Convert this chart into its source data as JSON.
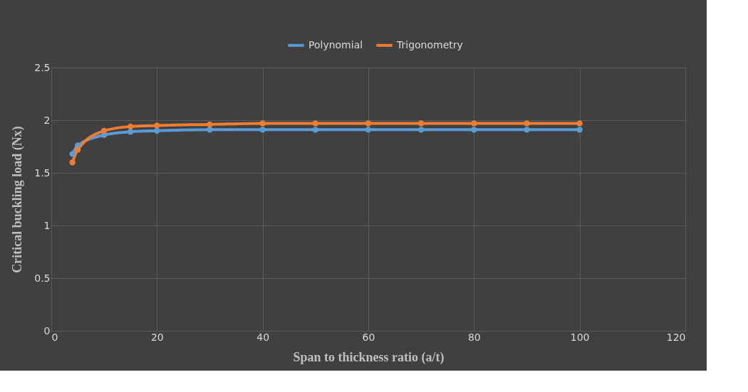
{
  "chart_data": {
    "type": "line",
    "xlabel": "Span to thickness ratio (a/t)",
    "ylabel": "Critical buckling load (Nx)",
    "x": [
      4,
      5,
      10,
      15,
      20,
      30,
      40,
      50,
      60,
      70,
      80,
      90,
      100
    ],
    "series": [
      {
        "name": "Polynomial",
        "color": "#5b9bd5",
        "values": [
          1.68,
          1.76,
          1.86,
          1.89,
          1.9,
          1.91,
          1.91,
          1.91,
          1.91,
          1.91,
          1.91,
          1.91,
          1.91
        ]
      },
      {
        "name": "Trigonometry",
        "color": "#ed7d31",
        "values": [
          1.6,
          1.72,
          1.9,
          1.94,
          1.95,
          1.96,
          1.97,
          1.97,
          1.97,
          1.97,
          1.97,
          1.97,
          1.97
        ]
      }
    ],
    "xlim": [
      0,
      120
    ],
    "xticks": [
      0,
      20,
      40,
      60,
      80,
      100,
      120
    ],
    "ylim": [
      0,
      2.5
    ],
    "yticks": [
      0,
      0.5,
      1,
      1.5,
      2,
      2.5
    ],
    "grid": true,
    "legend": "top",
    "marker": "circle",
    "line_style": "solid"
  }
}
